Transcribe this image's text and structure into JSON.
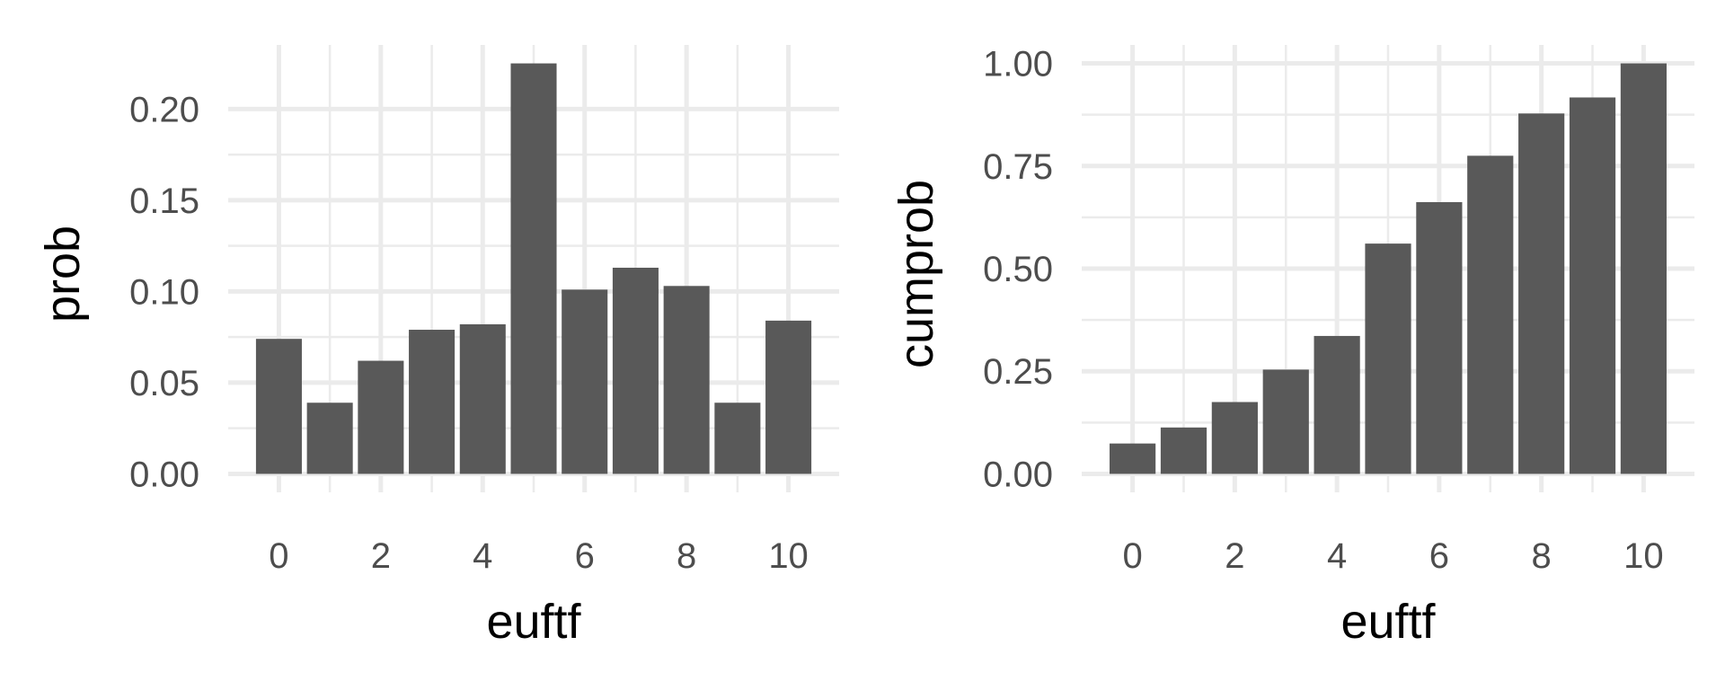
{
  "colors": {
    "bar": "#595959",
    "grid": "#ebebeb",
    "background": "#ffffff"
  },
  "chart_data": [
    {
      "type": "bar",
      "x": [
        0,
        1,
        2,
        3,
        4,
        5,
        6,
        7,
        8,
        9,
        10
      ],
      "values": [
        0.074,
        0.039,
        0.062,
        0.079,
        0.082,
        0.225,
        0.101,
        0.113,
        0.103,
        0.039,
        0.084
      ],
      "xlabel": "euftf",
      "ylabel": "prob",
      "ylim": [
        0,
        0.225
      ],
      "y_ticks": [
        0.0,
        0.05,
        0.1,
        0.15,
        0.2
      ],
      "y_tick_labels": [
        "0.00",
        "0.05",
        "0.10",
        "0.15",
        "0.20"
      ],
      "x_ticks": [
        0,
        2,
        4,
        6,
        8,
        10
      ],
      "x_tick_labels": [
        "0",
        "2",
        "4",
        "6",
        "8",
        "10"
      ],
      "grid": true,
      "legend": "none"
    },
    {
      "type": "bar",
      "x": [
        0,
        1,
        2,
        3,
        4,
        5,
        6,
        7,
        8,
        9,
        10
      ],
      "values": [
        0.074,
        0.113,
        0.175,
        0.254,
        0.336,
        0.561,
        0.662,
        0.775,
        0.878,
        0.917,
        1.0
      ],
      "xlabel": "euftf",
      "ylabel": "cumprob",
      "ylim": [
        0,
        1.0
      ],
      "y_ticks": [
        0.0,
        0.25,
        0.5,
        0.75,
        1.0
      ],
      "y_tick_labels": [
        "0.00",
        "0.25",
        "0.50",
        "0.75",
        "1.00"
      ],
      "x_ticks": [
        0,
        2,
        4,
        6,
        8,
        10
      ],
      "x_tick_labels": [
        "0",
        "2",
        "4",
        "6",
        "8",
        "10"
      ],
      "grid": true,
      "legend": "none"
    }
  ]
}
